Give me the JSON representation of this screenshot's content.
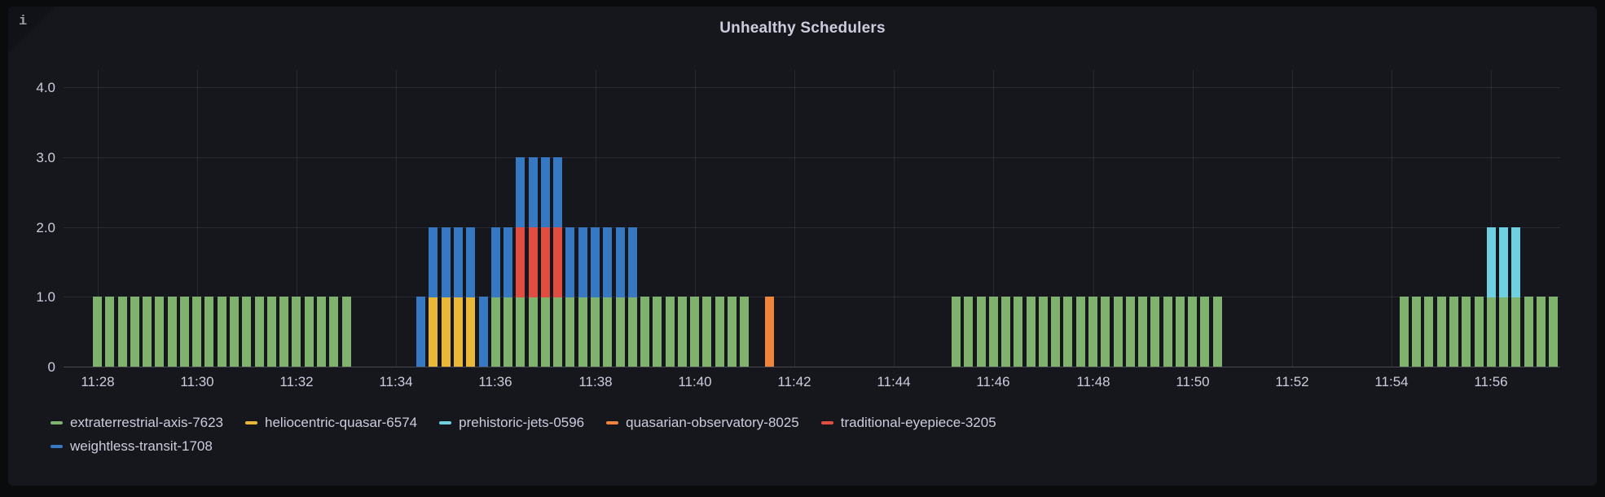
{
  "panel": {
    "title": "Unhealthy Schedulers",
    "info_icon": "i"
  },
  "legend": {
    "rows": [
      [
        "extraterrestrial-axis-7623",
        "heliocentric-quasar-6574",
        "prehistoric-jets-0596",
        "quasarian-observatory-8025",
        "traditional-eyepiece-3205"
      ],
      [
        "weightless-transit-1708"
      ]
    ]
  },
  "chart_data": {
    "type": "bar",
    "stacked": true,
    "title": "Unhealthy Schedulers",
    "ylim": [
      0,
      4.0
    ],
    "grid": true,
    "legend_position": "bottom-left",
    "y_ticks": [
      {
        "value": 0,
        "label": "0"
      },
      {
        "value": 1,
        "label": "1.0"
      },
      {
        "value": 2,
        "label": "2.0"
      },
      {
        "value": 3,
        "label": "3.0"
      },
      {
        "value": 4,
        "label": "4.0"
      }
    ],
    "x_ticks": [
      "11:28",
      "11:30",
      "11:32",
      "11:34",
      "11:36",
      "11:38",
      "11:40",
      "11:42",
      "11:44",
      "11:46",
      "11:48",
      "11:50",
      "11:52",
      "11:54",
      "11:56"
    ],
    "bar_interval_seconds": 15,
    "bucket_value": 1,
    "stack_order_note": "series stacked bottom-to-top in listed order; each active bucket contributes value 1",
    "series": [
      {
        "name": "extraterrestrial-axis-7623",
        "color": "#7EB26D",
        "intervals": [
          [
            "11:28:00",
            "11:33:00"
          ],
          [
            "11:36:00",
            "11:41:00"
          ],
          [
            "11:45:15",
            "11:50:30"
          ],
          [
            "11:54:15",
            "11:57:15"
          ]
        ]
      },
      {
        "name": "heliocentric-quasar-6574",
        "color": "#EAB839",
        "intervals": [
          [
            "11:34:45",
            "11:35:30"
          ]
        ]
      },
      {
        "name": "prehistoric-jets-0596",
        "color": "#6ED0E0",
        "intervals": [
          [
            "11:56:00",
            "11:56:30"
          ]
        ]
      },
      {
        "name": "quasarian-observatory-8025",
        "color": "#EF843C",
        "intervals": [
          [
            "11:41:30",
            "11:41:30"
          ]
        ]
      },
      {
        "name": "traditional-eyepiece-3205",
        "color": "#E24D42",
        "intervals": [
          [
            "11:36:30",
            "11:37:15"
          ]
        ]
      },
      {
        "name": "weightless-transit-1708",
        "color": "#3778C2",
        "intervals": [
          [
            "11:34:30",
            "11:38:45"
          ]
        ]
      }
    ]
  }
}
